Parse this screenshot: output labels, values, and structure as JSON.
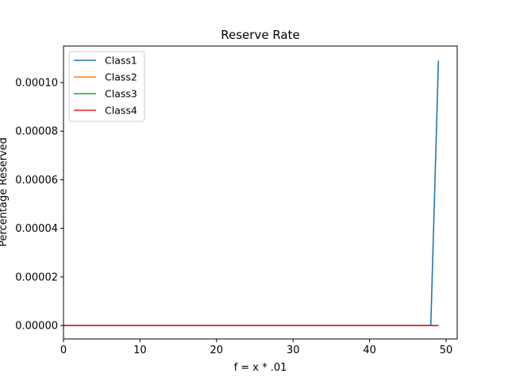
{
  "chart_data": {
    "type": "line",
    "title": "Reserve Rate",
    "xlabel": "f = x * .01",
    "ylabel": "Percentage Reserved",
    "xlim": [
      0,
      51.45
    ],
    "ylim": [
      -5.5e-06,
      0.000115
    ],
    "xticks": [
      0,
      10,
      20,
      30,
      40,
      50
    ],
    "xtick_labels": [
      "0",
      "10",
      "20",
      "30",
      "40",
      "50"
    ],
    "yticks": [
      0,
      2e-05,
      4e-05,
      6e-05,
      8e-05,
      0.0001
    ],
    "ytick_labels": [
      "0.00000",
      "0.00002",
      "0.00004",
      "0.00006",
      "0.00008",
      "0.00010"
    ],
    "grid": false,
    "legend_position": "top-left",
    "series": [
      {
        "name": "Class1",
        "color": "#1f77b4",
        "x": [
          0,
          48,
          49
        ],
        "y": [
          0,
          0,
          0.000109
        ]
      },
      {
        "name": "Class2",
        "color": "#ff7f0e",
        "x": [
          0,
          49
        ],
        "y": [
          0,
          0
        ]
      },
      {
        "name": "Class3",
        "color": "#2ca02c",
        "x": [
          0,
          49
        ],
        "y": [
          0,
          0
        ]
      },
      {
        "name": "Class4",
        "color": "#d62728",
        "x": [
          0,
          49
        ],
        "y": [
          0,
          0
        ]
      }
    ]
  }
}
